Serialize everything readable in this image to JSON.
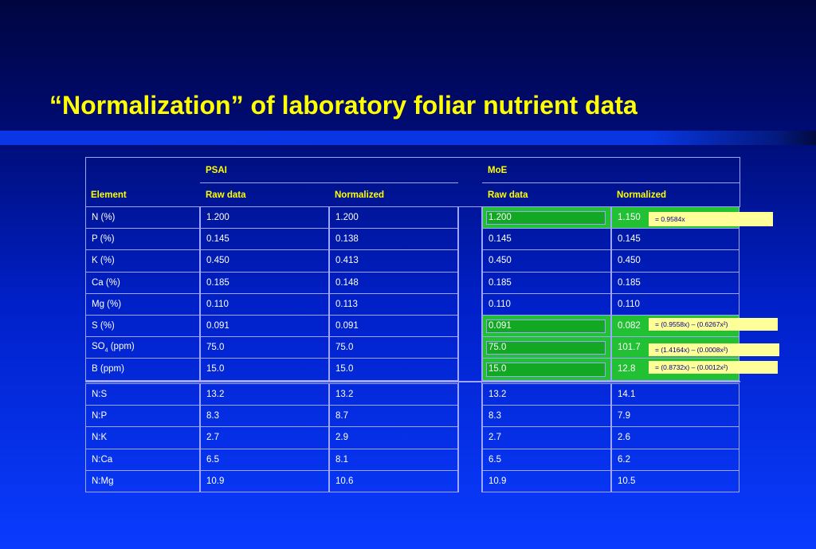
{
  "slide": {
    "title": "“Normalization” of laboratory foliar nutrient data"
  },
  "table": {
    "group_headers": {
      "psai": "PSAI",
      "moe": "MoE"
    },
    "col_headers": {
      "element": "Element",
      "psai_raw": "Raw data",
      "psai_norm": "Normalized",
      "moe_raw": "Raw data",
      "moe_norm": "Normalized"
    },
    "rows": [
      {
        "element": "N (%)",
        "psai_raw": "1.200",
        "psai_norm": "1.200",
        "moe_raw": "1.200",
        "moe_norm": "1.150",
        "highlight": true
      },
      {
        "element": "P (%)",
        "psai_raw": "0.145",
        "psai_norm": "0.138",
        "moe_raw": "0.145",
        "moe_norm": "0.145",
        "highlight": false
      },
      {
        "element": "K (%)",
        "psai_raw": "0.450",
        "psai_norm": "0.413",
        "moe_raw": "0.450",
        "moe_norm": "0.450",
        "highlight": false
      },
      {
        "element": "Ca (%)",
        "psai_raw": "0.185",
        "psai_norm": "0.148",
        "moe_raw": "0.185",
        "moe_norm": "0.185",
        "highlight": false
      },
      {
        "element": "Mg (%)",
        "psai_raw": "0.110",
        "psai_norm": "0.113",
        "moe_raw": "0.110",
        "moe_norm": "0.110",
        "highlight": false
      },
      {
        "element": "S (%)",
        "psai_raw": "0.091",
        "psai_norm": "0.091",
        "moe_raw": "0.091",
        "moe_norm": "0.082",
        "highlight": true
      },
      {
        "element": "SO4 (ppm)",
        "psai_raw": "75.0",
        "psai_norm": "75.0",
        "moe_raw": "75.0",
        "moe_norm": "101.7",
        "highlight": true
      },
      {
        "element": "B (ppm)",
        "psai_raw": "15.0",
        "psai_norm": "15.0",
        "moe_raw": "15.0",
        "moe_norm": "12.8",
        "highlight": true
      }
    ],
    "ratio_rows": [
      {
        "element": "N:S",
        "psai_raw": "13.2",
        "psai_norm": "13.2",
        "moe_raw": "13.2",
        "moe_norm": "14.1"
      },
      {
        "element": "N:P",
        "psai_raw": "8.3",
        "psai_norm": "8.7",
        "moe_raw": "8.3",
        "moe_norm": "7.9"
      },
      {
        "element": "N:K",
        "psai_raw": "2.7",
        "psai_norm": "2.9",
        "moe_raw": "2.7",
        "moe_norm": "2.6"
      },
      {
        "element": "N:Ca",
        "psai_raw": "6.5",
        "psai_norm": "8.1",
        "moe_raw": "6.5",
        "moe_norm": "6.2"
      },
      {
        "element": "N:Mg",
        "psai_raw": "10.9",
        "psai_norm": "10.6",
        "moe_raw": "10.9",
        "moe_norm": "10.5"
      }
    ],
    "so4_subscript": "4"
  },
  "equations": {
    "n": "= 0.9584x",
    "s": "= (0.9558x) – (0.6267x²)",
    "so4": "= (1.4164x) –  (0.0008x²)",
    "b": "= (0.8732x) – (0.0012x²)"
  },
  "colors": {
    "title": "#ffff00",
    "header_text": "#ffff00",
    "cell_text": "#ffffff",
    "grid_line": "#9ea6ff",
    "highlight": "#22c033",
    "equation_bg": "#ffff99",
    "equation_text": "#000080"
  }
}
